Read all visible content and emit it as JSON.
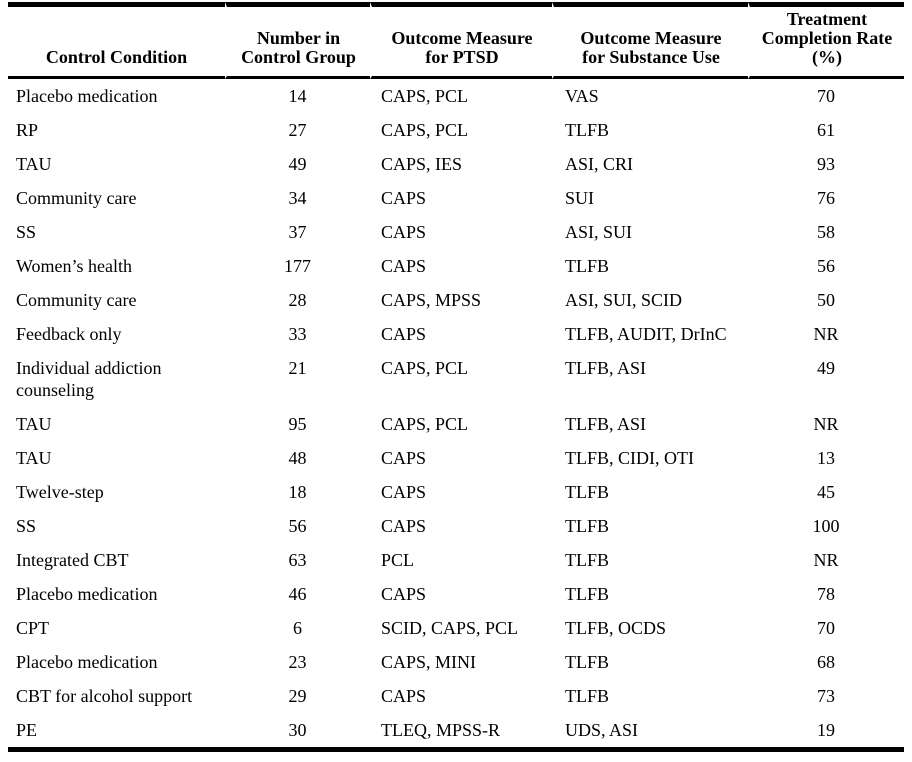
{
  "page": {
    "background_color": "#ffffff",
    "text_color": "#000000",
    "rule_color": "#000000"
  },
  "table": {
    "headers": [
      {
        "id": "control-condition",
        "lines": [
          "Control Condition"
        ]
      },
      {
        "id": "number-in-control-group",
        "lines": [
          "Number in",
          "Control Group"
        ]
      },
      {
        "id": "outcome-measure-ptsd",
        "lines": [
          "Outcome Measure",
          "for PTSD"
        ]
      },
      {
        "id": "outcome-measure-substance-use",
        "lines": [
          "Outcome Measure",
          "for Substance Use"
        ]
      },
      {
        "id": "treatment-completion-rate",
        "lines": [
          "Treatment",
          "Completion Rate",
          "(%)"
        ]
      }
    ],
    "rows": [
      [
        "Placebo medication",
        "14",
        "CAPS, PCL",
        "VAS",
        "70"
      ],
      [
        "RP",
        "27",
        "CAPS, PCL",
        "TLFB",
        "61"
      ],
      [
        "TAU",
        "49",
        "CAPS, IES",
        "ASI, CRI",
        "93"
      ],
      [
        "Community care",
        "34",
        "CAPS",
        "SUI",
        "76"
      ],
      [
        "SS",
        "37",
        "CAPS",
        "ASI, SUI",
        "58"
      ],
      [
        "Women’s health",
        "177",
        "CAPS",
        "TLFB",
        "56"
      ],
      [
        "Community care",
        "28",
        "CAPS, MPSS",
        "ASI, SUI, SCID",
        "50"
      ],
      [
        "Feedback only",
        "33",
        "CAPS",
        "TLFB, AUDIT, DrInC",
        "NR"
      ],
      [
        "Individual addiction counseling",
        "21",
        "CAPS, PCL",
        "TLFB, ASI",
        "49"
      ],
      [
        "TAU",
        "95",
        "CAPS, PCL",
        "TLFB, ASI",
        "NR"
      ],
      [
        "TAU",
        "48",
        "CAPS",
        "TLFB, CIDI, OTI",
        "13"
      ],
      [
        "Twelve-step",
        "18",
        "CAPS",
        "TLFB",
        "45"
      ],
      [
        "SS",
        "56",
        "CAPS",
        "TLFB",
        "100"
      ],
      [
        "Integrated CBT",
        "63",
        "PCL",
        "TLFB",
        "NR"
      ],
      [
        "Placebo medication",
        "46",
        "CAPS",
        "TLFB",
        "78"
      ],
      [
        "CPT",
        "6",
        "SCID, CAPS, PCL",
        "TLFB, OCDS",
        "70"
      ],
      [
        "Placebo medication",
        "23",
        "CAPS, MINI",
        "TLFB",
        "68"
      ],
      [
        "CBT for alcohol support",
        "29",
        "CAPS",
        "TLFB",
        "73"
      ],
      [
        "PE",
        "30",
        "TLEQ, MPSS-R",
        "UDS, ASI",
        "19"
      ]
    ]
  }
}
